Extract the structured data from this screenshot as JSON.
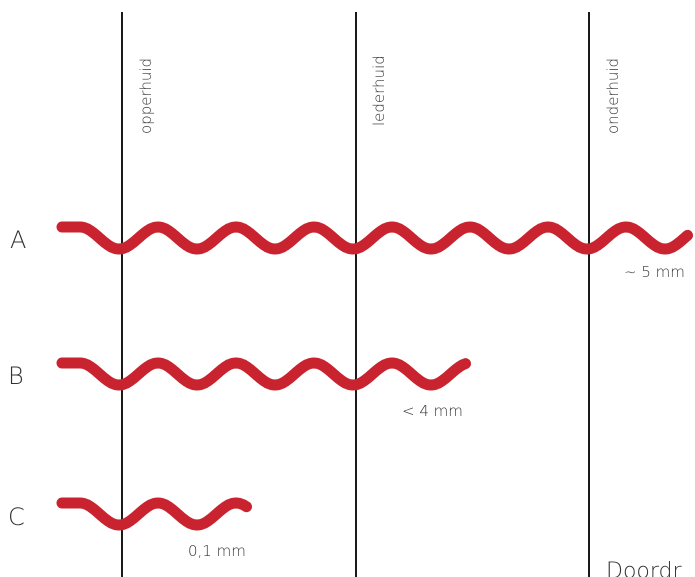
{
  "layers": [
    {
      "name": "opperhuid"
    },
    {
      "name": "lederhuid"
    },
    {
      "name": "onderhuid"
    }
  ],
  "rows": [
    {
      "label": "A",
      "depth": "~ 5 mm",
      "reaches_layer": "onderhuid"
    },
    {
      "label": "B",
      "depth": "< 4 mm",
      "reaches_layer": "lederhuid"
    },
    {
      "label": "C",
      "depth": "0,1 mm",
      "reaches_layer": "opperhuid"
    }
  ],
  "footer": "Doordr",
  "colors": {
    "wave": "#c8232f",
    "boundary": "#1a1a1a",
    "text": "#333333"
  }
}
